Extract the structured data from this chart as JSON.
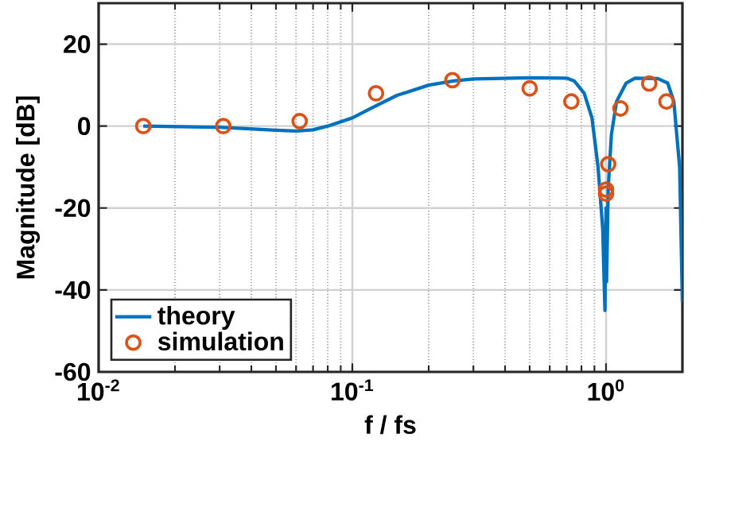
{
  "chart_data": {
    "type": "line",
    "xlabel": "f / fs",
    "ylabel": "Magnitude [dB]",
    "log": "x",
    "grid": true,
    "legend": "bottom left",
    "xlim": [
      0.01,
      2
    ],
    "ylim": [
      -60,
      30
    ],
    "xticks": [
      {
        "value": 0.01,
        "label": "10$^{-2}$"
      },
      {
        "value": 0.1,
        "label": "10$^{-1}$"
      },
      {
        "value": 1,
        "label": "10$^{0}$"
      }
    ],
    "yticks": [
      -60,
      -40,
      -20,
      0,
      20
    ],
    "series": [
      {
        "name": "theory",
        "color": "#0072bd",
        "marker": "none",
        "x": [
          0.015,
          0.03,
          0.05,
          0.06,
          0.07,
          0.08,
          0.1,
          0.12,
          0.15,
          0.2,
          0.25,
          0.3,
          0.5,
          0.7,
          0.75,
          0.82,
          0.88,
          0.93,
          0.97,
          0.99,
          1.0,
          1.005,
          1.01,
          1.02,
          1.05,
          1.1,
          1.2,
          1.3,
          1.6,
          1.75,
          1.85,
          1.95,
          2.0
        ],
        "values": [
          0,
          -0.3,
          -1,
          -1.2,
          -0.9,
          0,
          2,
          4.5,
          7.5,
          10,
          11,
          11.5,
          11.8,
          11.7,
          11,
          8,
          2,
          -10,
          -25,
          -45,
          -20,
          -38,
          -30,
          -15,
          -2,
          6,
          10.5,
          11.7,
          11.6,
          10.5,
          6,
          -10,
          -43
        ]
      },
      {
        "name": "simulation",
        "type": "scatter",
        "color": "#d95319",
        "marker": "circle",
        "x": [
          0.015,
          0.031,
          0.062,
          0.124,
          0.248,
          0.5,
          0.73,
          1.0,
          1.0,
          1.02,
          1.14,
          1.48,
          1.73
        ],
        "values": [
          0,
          0,
          1.2,
          8,
          11.2,
          9.2,
          6,
          -15.5,
          -16.5,
          -9.3,
          4.3,
          10.4,
          6
        ]
      }
    ]
  }
}
